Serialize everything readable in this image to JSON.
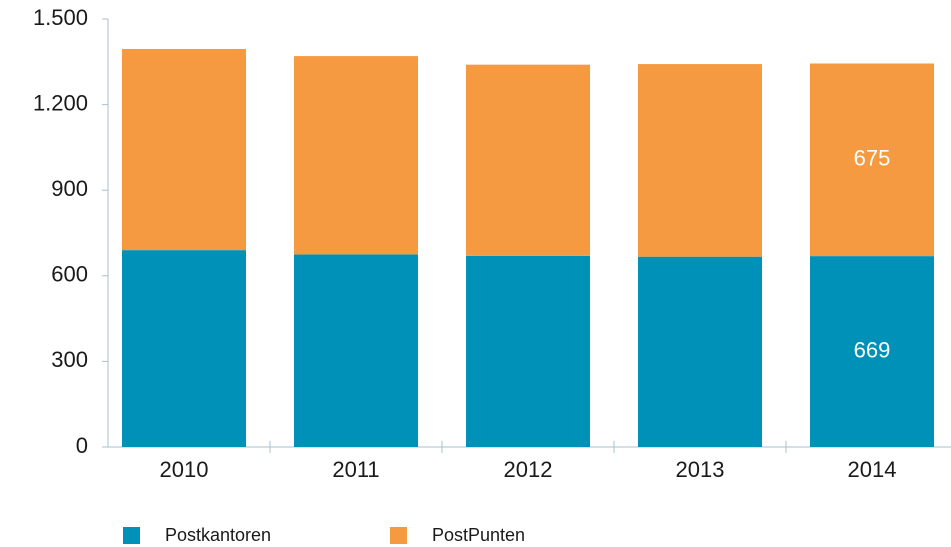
{
  "chart_data": {
    "type": "bar",
    "stacked": true,
    "categories": [
      "2010",
      "2011",
      "2012",
      "2013",
      "2014"
    ],
    "series": [
      {
        "name": "Postkantoren",
        "color": "#0091b9",
        "values": [
          690,
          675,
          670,
          667,
          669
        ]
      },
      {
        "name": "PostPunten",
        "color": "#f59a40",
        "values": [
          705,
          695,
          670,
          675,
          675
        ]
      }
    ],
    "ylim": [
      0,
      1500
    ],
    "yticks": [
      0,
      300,
      600,
      900,
      {
        "value": 1200,
        "label": "1.200"
      },
      {
        "value": 1500,
        "label": "1.500"
      }
    ],
    "grid": false
  }
}
